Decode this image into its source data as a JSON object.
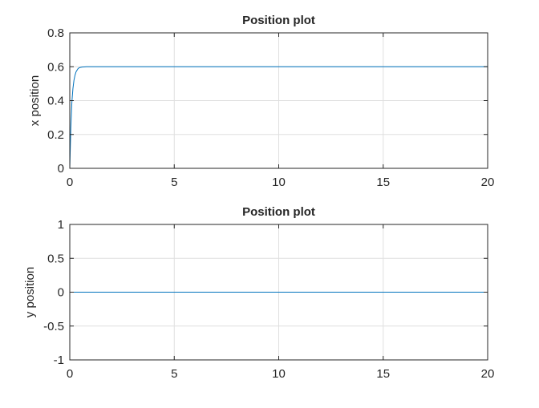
{
  "chart_data": [
    {
      "type": "line",
      "title": "Position plot",
      "xlabel": "",
      "ylabel": "x position",
      "xlim": [
        0,
        20
      ],
      "ylim": [
        0,
        0.8
      ],
      "xticks": [
        0,
        5,
        10,
        15,
        20
      ],
      "xtick_labels": [
        "0",
        "5",
        "10",
        "15",
        "20"
      ],
      "yticks": [
        0,
        0.2,
        0.4,
        0.6,
        0.8
      ],
      "ytick_labels": [
        "0",
        "0.2",
        "0.4",
        "0.6",
        "0.8"
      ],
      "grid": true,
      "series": [
        {
          "color": "#0072bd",
          "x": [
            0,
            0.05,
            0.1,
            0.15,
            0.2,
            0.25,
            0.3,
            0.35,
            0.4,
            0.5,
            0.6,
            0.7,
            0.8,
            1.0,
            2,
            5,
            10,
            15,
            20
          ],
          "y": [
            0,
            0.24,
            0.39,
            0.47,
            0.52,
            0.55,
            0.57,
            0.58,
            0.59,
            0.596,
            0.598,
            0.599,
            0.6,
            0.6,
            0.6,
            0.6,
            0.6,
            0.6,
            0.6
          ]
        }
      ]
    },
    {
      "type": "line",
      "title": "Position plot",
      "xlabel": "",
      "ylabel": "y position",
      "xlim": [
        0,
        20
      ],
      "ylim": [
        -1,
        1
      ],
      "xticks": [
        0,
        5,
        10,
        15,
        20
      ],
      "xtick_labels": [
        "0",
        "5",
        "10",
        "15",
        "20"
      ],
      "yticks": [
        -1,
        -0.5,
        0,
        0.5,
        1
      ],
      "ytick_labels": [
        "-1",
        "-0.5",
        "0",
        "0.5",
        "1"
      ],
      "grid": true,
      "series": [
        {
          "color": "#0072bd",
          "x": [
            0,
            20
          ],
          "y": [
            0,
            0
          ]
        }
      ]
    }
  ]
}
